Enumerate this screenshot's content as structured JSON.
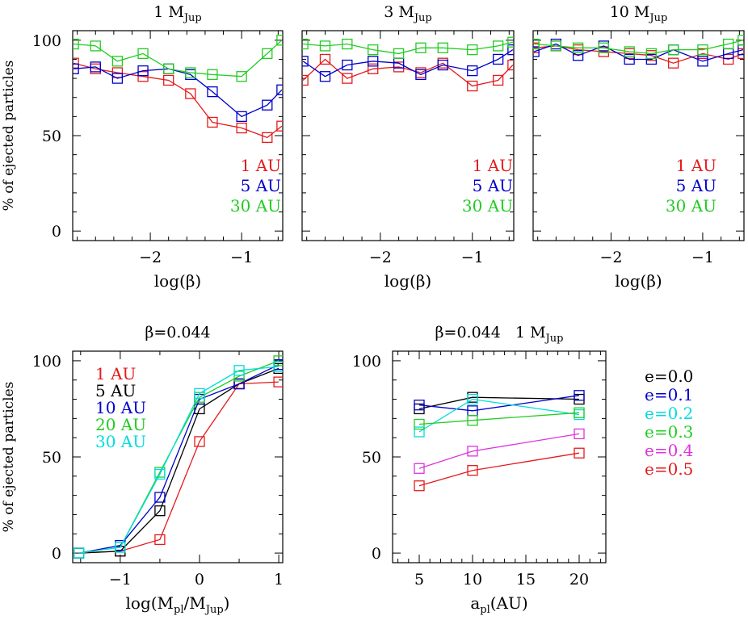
{
  "figure": {
    "ylabel": "% of ejected particles"
  },
  "chart_data": [
    {
      "id": "p1",
      "type": "line",
      "title": "1 M",
      "title_sub": "Jup",
      "xlabel": "log(β)",
      "ylabel": "% of ejected particles",
      "xlim": [
        -2.85,
        -0.55
      ],
      "ylim": [
        -5,
        105
      ],
      "xticks_major": [
        -2,
        -1
      ],
      "xticklabels": [
        "−2",
        "−1"
      ],
      "xticks_minor": [
        -2.8,
        -2.6,
        -2.4,
        -2.2,
        -1.8,
        -1.6,
        -1.4,
        -1.2,
        -0.8,
        -0.6
      ],
      "yticks_major": [
        0,
        50,
        100
      ],
      "yticklabels": [
        "0",
        "50",
        "100"
      ],
      "yticks_minor": [
        10,
        20,
        30,
        40,
        60,
        70,
        80,
        90
      ],
      "legend": [
        "1 AU",
        "5 AU",
        "30 AU"
      ],
      "series": [
        {
          "name": "1 AU",
          "color": "#e41a1c",
          "x": [
            -2.84,
            -2.6,
            -2.36,
            -2.08,
            -1.8,
            -1.56,
            -1.32,
            -1.0,
            -0.72,
            -0.56
          ],
          "y": [
            88,
            85,
            83,
            81,
            79,
            72,
            57,
            54,
            49,
            55
          ]
        },
        {
          "name": "5 AU",
          "color": "#0000cc",
          "x": [
            -2.84,
            -2.6,
            -2.36,
            -2.08,
            -1.8,
            -1.56,
            -1.32,
            -1.0,
            -0.72,
            -0.56
          ],
          "y": [
            85,
            86,
            80,
            84,
            85,
            82,
            73,
            60,
            66,
            74
          ]
        },
        {
          "name": "30 AU",
          "color": "#22cc22",
          "x": [
            -2.84,
            -2.6,
            -2.36,
            -2.08,
            -1.8,
            -1.56,
            -1.32,
            -1.0,
            -0.72,
            -0.56
          ],
          "y": [
            98,
            97,
            89,
            93,
            85,
            83,
            82,
            81,
            93,
            100
          ]
        }
      ]
    },
    {
      "id": "p2",
      "type": "line",
      "title": "3 M",
      "title_sub": "Jup",
      "xlabel": "log(β)",
      "xlim": [
        -2.85,
        -0.55
      ],
      "ylim": [
        -5,
        105
      ],
      "xticks_major": [
        -2,
        -1
      ],
      "xticklabels": [
        "−2",
        "−1"
      ],
      "xticks_minor": [
        -2.8,
        -2.6,
        -2.4,
        -2.2,
        -1.8,
        -1.6,
        -1.4,
        -1.2,
        -0.8,
        -0.6
      ],
      "yticks_major": [
        0,
        50,
        100
      ],
      "yticklabels": [],
      "yticks_minor": [
        10,
        20,
        30,
        40,
        60,
        70,
        80,
        90
      ],
      "legend": [
        "1 AU",
        "5 AU",
        "30 AU"
      ],
      "series": [
        {
          "name": "1 AU",
          "color": "#e41a1c",
          "x": [
            -2.84,
            -2.6,
            -2.36,
            -2.08,
            -1.8,
            -1.56,
            -1.32,
            -1.0,
            -0.72,
            -0.56
          ],
          "y": [
            79,
            90,
            80,
            85,
            86,
            83,
            88,
            76,
            79,
            87
          ]
        },
        {
          "name": "5 AU",
          "color": "#0000cc",
          "x": [
            -2.84,
            -2.6,
            -2.36,
            -2.08,
            -1.8,
            -1.56,
            -1.32,
            -1.0,
            -0.72,
            -0.56
          ],
          "y": [
            89,
            81,
            87,
            89,
            88,
            82,
            87,
            84,
            90,
            95
          ]
        },
        {
          "name": "30 AU",
          "color": "#22cc22",
          "x": [
            -2.84,
            -2.6,
            -2.36,
            -2.08,
            -1.8,
            -1.56,
            -1.32,
            -1.0,
            -0.72,
            -0.56
          ],
          "y": [
            98,
            97,
            98,
            95,
            93,
            96,
            96,
            95,
            97,
            99
          ]
        }
      ]
    },
    {
      "id": "p3",
      "type": "line",
      "title": "10 M",
      "title_sub": "Jup",
      "xlabel": "log(β)",
      "xlim": [
        -2.85,
        -0.55
      ],
      "ylim": [
        -5,
        105
      ],
      "xticks_major": [
        -2,
        -1
      ],
      "xticklabels": [
        "−2",
        "−1"
      ],
      "xticks_minor": [
        -2.8,
        -2.6,
        -2.4,
        -2.2,
        -1.8,
        -1.6,
        -1.4,
        -1.2,
        -0.8,
        -0.6
      ],
      "yticks_major": [
        0,
        50,
        100
      ],
      "yticklabels": [],
      "yticks_minor": [
        10,
        20,
        30,
        40,
        60,
        70,
        80,
        90
      ],
      "legend": [
        "1 AU",
        "5 AU",
        "30 AU"
      ],
      "series": [
        {
          "name": "1 AU",
          "color": "#e41a1c",
          "x": [
            -2.84,
            -2.6,
            -2.36,
            -2.08,
            -1.8,
            -1.56,
            -1.32,
            -1.0,
            -0.72,
            -0.56
          ],
          "y": [
            96,
            97,
            95,
            94,
            93,
            92,
            88,
            93,
            90,
            93
          ]
        },
        {
          "name": "5 AU",
          "color": "#0000cc",
          "x": [
            -2.84,
            -2.6,
            -2.36,
            -2.08,
            -1.8,
            -1.56,
            -1.32,
            -1.0,
            -0.72,
            -0.56
          ],
          "y": [
            94,
            98,
            92,
            97,
            90,
            90,
            95,
            89,
            93,
            95
          ]
        },
        {
          "name": "30 AU",
          "color": "#22cc22",
          "x": [
            -2.84,
            -2.6,
            -2.36,
            -2.08,
            -1.8,
            -1.56,
            -1.32,
            -1.0,
            -0.72,
            -0.56
          ],
          "y": [
            98,
            97,
            96,
            96,
            94,
            93,
            95,
            95,
            98,
            100
          ]
        }
      ]
    },
    {
      "id": "p4",
      "type": "line",
      "title": "β=0.044",
      "xlabel": "log(M",
      "xlabel_sub1": "pl",
      "xlabel_mid": "/M",
      "xlabel_sub2": "Jup",
      "xlabel_end": ")",
      "ylabel": "% of ejected particles",
      "xlim": [
        -1.6,
        1.05
      ],
      "ylim": [
        -5,
        105
      ],
      "xticks_major": [
        -1,
        0,
        1
      ],
      "xticklabels": [
        "−1",
        "0",
        "1"
      ],
      "xticks_minor": [
        -1.5,
        -0.5,
        0.5
      ],
      "yticks_major": [
        0,
        50,
        100
      ],
      "yticklabels": [
        "0",
        "50",
        "100"
      ],
      "yticks_minor": [
        10,
        20,
        30,
        40,
        60,
        70,
        80,
        90
      ],
      "legend": [
        "1 AU",
        "5 AU",
        "10 AU",
        "20 AU",
        "30 AU"
      ],
      "series": [
        {
          "name": "1 AU",
          "color": "#e41a1c",
          "x": [
            -1.52,
            -1.0,
            -0.5,
            0.0,
            0.5,
            1.0
          ],
          "y": [
            0,
            1,
            7,
            58,
            88,
            89
          ]
        },
        {
          "name": "5 AU",
          "color": "#000000",
          "x": [
            -1.52,
            -1.0,
            -0.5,
            0.0,
            0.5,
            1.0
          ],
          "y": [
            0,
            1,
            22,
            75,
            88,
            96
          ]
        },
        {
          "name": "10 AU",
          "color": "#0000cc",
          "x": [
            -1.52,
            -1.0,
            -0.5,
            0.0,
            0.5,
            1.0
          ],
          "y": [
            0,
            4,
            29,
            80,
            88,
            98
          ]
        },
        {
          "name": "20 AU",
          "color": "#22cc22",
          "x": [
            -1.52,
            -1.0,
            -0.5,
            0.0,
            0.5,
            1.0
          ],
          "y": [
            0,
            3,
            42,
            81,
            92,
            100
          ]
        },
        {
          "name": "30 AU",
          "color": "#00dddd",
          "x": [
            -1.52,
            -1.0,
            -0.5,
            0.0,
            0.5,
            1.0
          ],
          "y": [
            0,
            3,
            41,
            83,
            95,
            97
          ]
        }
      ]
    },
    {
      "id": "p5",
      "type": "line",
      "title": "β=0.044   1 M",
      "title_sub": "Jup",
      "xlabel": "a",
      "xlabel_sub1": "pl",
      "xlabel_end": "(AU)",
      "xlim": [
        2.5,
        22.5
      ],
      "ylim": [
        -5,
        105
      ],
      "xticks_major": [
        5,
        10,
        15,
        20
      ],
      "xticklabels": [
        "5",
        "10",
        "15",
        "20"
      ],
      "xticks_minor": [
        3,
        4,
        6,
        7,
        8,
        9,
        11,
        12,
        13,
        14,
        16,
        17,
        18,
        19,
        21,
        22
      ],
      "yticks_major": [
        0,
        50,
        100
      ],
      "yticklabels": [
        "0",
        "50",
        "100"
      ],
      "yticks_minor": [
        10,
        20,
        30,
        40,
        60,
        70,
        80,
        90
      ],
      "legend": [
        "e=0.0",
        "e=0.1",
        "e=0.2",
        "e=0.3",
        "e=0.4",
        "e=0.5"
      ],
      "series": [
        {
          "name": "e=0.0",
          "color": "#000000",
          "x": [
            5,
            10,
            20
          ],
          "y": [
            75,
            81,
            80
          ]
        },
        {
          "name": "e=0.1",
          "color": "#0000cc",
          "x": [
            5,
            10,
            20
          ],
          "y": [
            77,
            74,
            82
          ]
        },
        {
          "name": "e=0.2",
          "color": "#00dddd",
          "x": [
            5,
            10,
            20
          ],
          "y": [
            63,
            80,
            72
          ]
        },
        {
          "name": "e=0.3",
          "color": "#22cc22",
          "x": [
            5,
            10,
            20
          ],
          "y": [
            67,
            69,
            73
          ]
        },
        {
          "name": "e=0.4",
          "color": "#dd33dd",
          "x": [
            5,
            10,
            20
          ],
          "y": [
            44,
            53,
            62
          ]
        },
        {
          "name": "e=0.5",
          "color": "#e41a1c",
          "x": [
            5,
            10,
            20
          ],
          "y": [
            35,
            43,
            52
          ]
        }
      ]
    }
  ]
}
